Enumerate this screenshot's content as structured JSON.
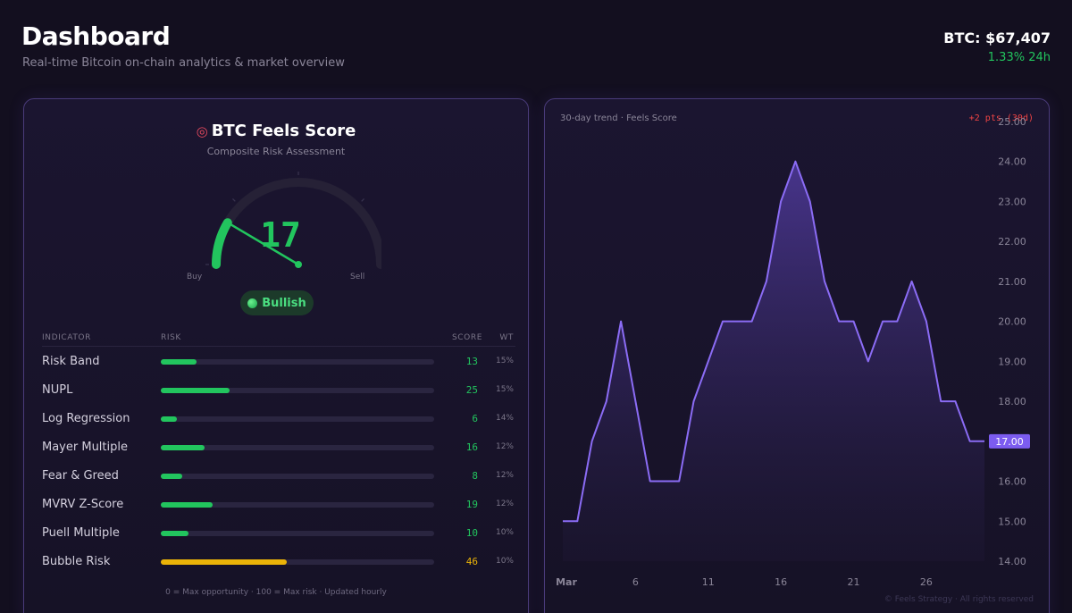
{
  "header": {
    "title": "Dashboard",
    "subtitle": "Real-time Bitcoin on-chain analytics & market overview",
    "price": "BTC: $67,407",
    "change": "1.33% 24h"
  },
  "score_card": {
    "title": "BTC Feels Score",
    "subtitle": "Composite Risk Assessment",
    "score": "17",
    "score_value": 17,
    "buy_label": "Buy",
    "sell_label": "Sell",
    "status": "Bullish",
    "columns": {
      "indicator": "INDICATOR",
      "risk": "RISK",
      "score": "SCORE",
      "wt": "WT"
    },
    "indicators": [
      {
        "name": "Risk Band",
        "score": "13",
        "value": 13,
        "wt": "15%",
        "level": "low"
      },
      {
        "name": "NUPL",
        "score": "25",
        "value": 25,
        "wt": "15%",
        "level": "low"
      },
      {
        "name": "Log Regression",
        "score": "6",
        "value": 6,
        "wt": "14%",
        "level": "low"
      },
      {
        "name": "Mayer Multiple",
        "score": "16",
        "value": 16,
        "wt": "12%",
        "level": "low"
      },
      {
        "name": "Fear & Greed",
        "score": "8",
        "value": 8,
        "wt": "12%",
        "level": "low"
      },
      {
        "name": "MVRV Z-Score",
        "score": "19",
        "value": 19,
        "wt": "12%",
        "level": "low"
      },
      {
        "name": "Puell Multiple",
        "score": "10",
        "value": 10,
        "wt": "10%",
        "level": "low"
      },
      {
        "name": "Bubble Risk",
        "score": "46",
        "value": 46,
        "wt": "10%",
        "level": "mid"
      }
    ],
    "footnote": "0 = Max opportunity · 100 = Max risk · Updated hourly"
  },
  "trend": {
    "title": "30-day trend · Feels Score",
    "delta": "+2 pts (30d)",
    "watermark": "© Feels Strategy · All rights reserved"
  },
  "colors": {
    "green": "#22c55e",
    "yellow": "#eab308",
    "accent": "#7c5cf0"
  },
  "chart_data": {
    "type": "area",
    "title": "30-day trend · Feels Score",
    "x": [
      1,
      2,
      3,
      4,
      5,
      6,
      7,
      8,
      9,
      10,
      11,
      12,
      13,
      14,
      15,
      16,
      17,
      18,
      19,
      20,
      21,
      22,
      23,
      24,
      25,
      26,
      27,
      28,
      29,
      30
    ],
    "values": [
      15,
      15,
      17,
      18,
      20,
      18,
      16,
      16,
      16,
      18,
      19,
      20,
      20,
      20,
      21,
      23,
      24,
      23,
      21,
      20,
      20,
      19,
      20,
      20,
      21,
      20,
      18,
      18,
      17,
      17
    ],
    "xtick_positions": [
      1,
      6,
      11,
      16,
      21,
      26
    ],
    "xtick_labels": [
      "Mar",
      "6",
      "11",
      "16",
      "21",
      "26"
    ],
    "ylim": [
      14,
      25
    ],
    "ytick_values": [
      14,
      15,
      16,
      17,
      18,
      19,
      20,
      21,
      22,
      23,
      24,
      25
    ],
    "ytick_labels": [
      "14.00",
      "15.00",
      "16.00",
      "17.00",
      "18.00",
      "19.00",
      "20.00",
      "21.00",
      "22.00",
      "23.00",
      "24.00",
      "25.00"
    ],
    "last_value_label": "17.00"
  }
}
